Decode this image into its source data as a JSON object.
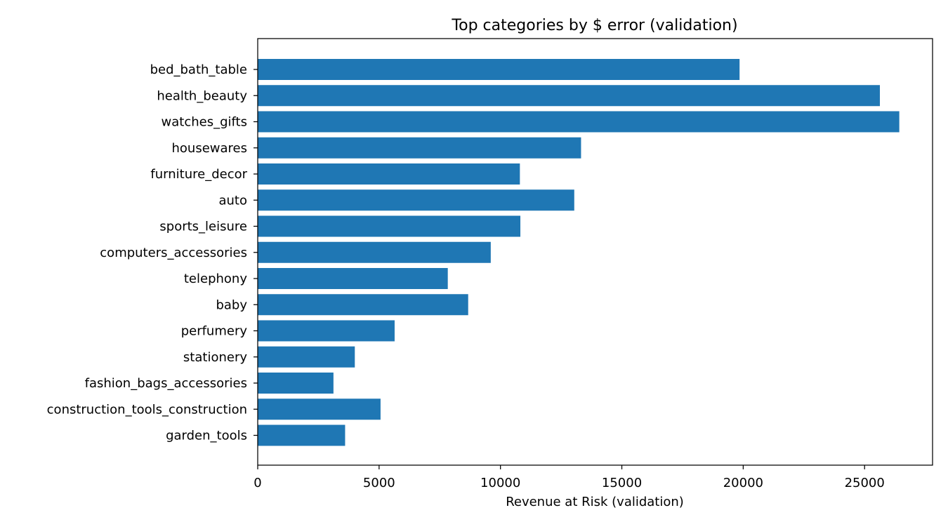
{
  "chart_data": {
    "type": "bar",
    "orientation": "horizontal",
    "title": "Top categories by $ error (validation)",
    "xlabel": "Revenue at Risk (validation)",
    "ylabel": "",
    "xlim": [
      0,
      27800
    ],
    "x_ticks": [
      0,
      5000,
      10000,
      15000,
      20000,
      25000
    ],
    "x_tick_labels": [
      "0",
      "5000",
      "10000",
      "15000",
      "20000",
      "25000"
    ],
    "grid": false,
    "legend": "none",
    "bar_color": "#1f77b4",
    "categories": [
      "bed_bath_table",
      "health_beauty",
      "watches_gifts",
      "housewares",
      "furniture_decor",
      "auto",
      "sports_leisure",
      "computers_accessories",
      "telephony",
      "baby",
      "perfumery",
      "stationery",
      "fashion_bags_accessories",
      "construction_tools_construction",
      "garden_tools"
    ],
    "values": [
      19850,
      25630,
      26430,
      13320,
      10800,
      13040,
      10820,
      9600,
      7830,
      8670,
      5640,
      4000,
      3120,
      5060,
      3600
    ]
  }
}
